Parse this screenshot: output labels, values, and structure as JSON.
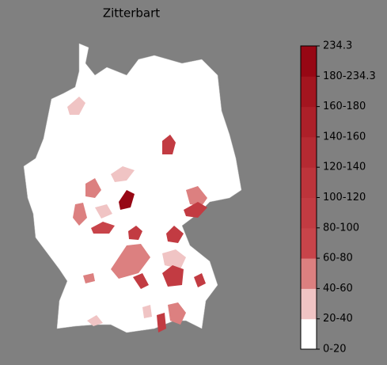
{
  "title": "Zitterbart",
  "colorbar": {
    "ticks": [
      "0-20",
      "20-40",
      "40-60",
      "60-80",
      "80-100",
      "100-120",
      "120-140",
      "140-160",
      "160-180",
      "180-234.3",
      "234.3"
    ],
    "colors": [
      "#ffffff",
      "#f0c4c4",
      "#dc8080",
      "#c8444a",
      "#c23b42",
      "#bd343b",
      "#b52a32",
      "#ad2029",
      "#a3151f",
      "#970714"
    ]
  }
}
